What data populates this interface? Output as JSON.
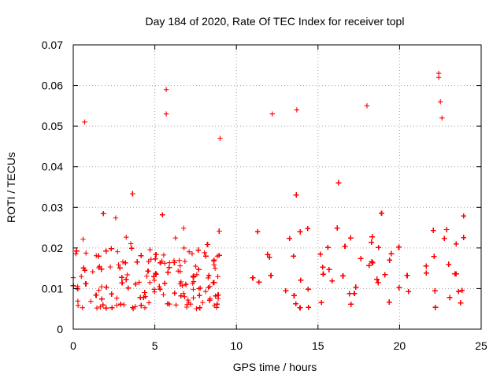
{
  "chart_data": {
    "type": "scatter",
    "title": "Day 184 of 2020, Rate Of TEC Index for receiver topl",
    "xlabel": "GPS time / hours",
    "ylabel": "ROTI / TECUs",
    "xlim": [
      0,
      25
    ],
    "ylim": [
      0,
      0.07
    ],
    "xticks": [
      0,
      5,
      10,
      15,
      20,
      25
    ],
    "xtick_labels": [
      "0",
      "5",
      "10",
      "15",
      "20",
      "25"
    ],
    "yticks": [
      0,
      0.01,
      0.02,
      0.03,
      0.04,
      0.05,
      0.06,
      0.07
    ],
    "ytick_labels": [
      "0",
      "0.01",
      "0.02",
      "0.03",
      "0.04",
      "0.05",
      "0.06",
      "0.07"
    ],
    "grid": true,
    "marker": "plus",
    "point_color": "#ff0000",
    "data_gap_hours": [
      9.0,
      11.0
    ],
    "segments": [
      {
        "x_start": 0.0,
        "x_end": 9.0,
        "typical_y": [
          0.005,
          0.02
        ],
        "max_y": 0.059
      },
      {
        "x_start": 11.0,
        "x_end": 24.0,
        "typical_y": [
          0.005,
          0.025
        ],
        "max_y": 0.063
      }
    ],
    "notable_points": [
      {
        "x": 0.7,
        "y": 0.051
      },
      {
        "x": 5.7,
        "y": 0.059
      },
      {
        "x": 5.7,
        "y": 0.053
      },
      {
        "x": 9.0,
        "y": 0.047
      },
      {
        "x": 12.2,
        "y": 0.053
      },
      {
        "x": 13.7,
        "y": 0.054
      },
      {
        "x": 18.0,
        "y": 0.055
      },
      {
        "x": 22.4,
        "y": 0.063
      },
      {
        "x": 22.4,
        "y": 0.062
      },
      {
        "x": 22.5,
        "y": 0.056
      },
      {
        "x": 22.6,
        "y": 0.052
      }
    ]
  }
}
